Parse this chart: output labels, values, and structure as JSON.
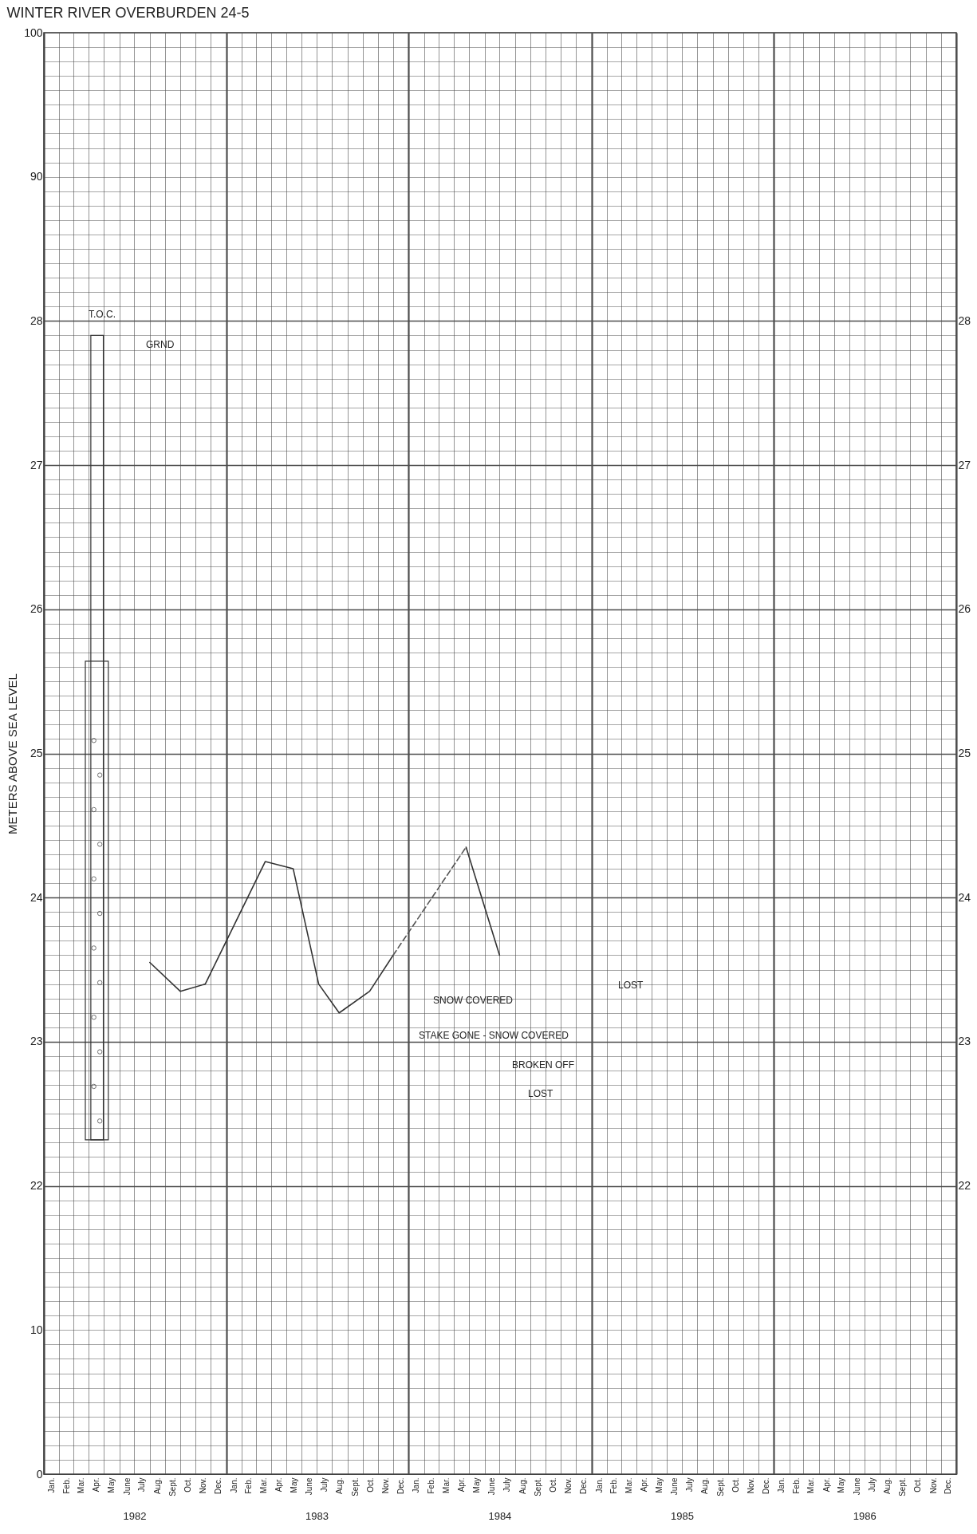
{
  "chart_data": {
    "type": "line",
    "title": "WINTER RIVER OVERBURDEN 24-5",
    "ylabel": "METERS ABOVE SEA LEVEL",
    "xlim": [
      "1982-01-01",
      "1987-01-01"
    ],
    "xticks": [
      {
        "value": "1982-01-01",
        "label": null
      },
      {
        "value": "1982-01-16",
        "label": "Jan."
      },
      {
        "value": "1982-02-01",
        "label": null
      },
      {
        "value": "1982-02-15",
        "label": "Feb."
      },
      {
        "value": "1982-03-01",
        "label": null
      },
      {
        "value": "1982-03-16",
        "label": "Mar."
      },
      {
        "value": "1982-04-01",
        "label": null
      },
      {
        "value": "1982-04-16",
        "label": "Apr."
      },
      {
        "value": "1982-05-01",
        "label": null
      },
      {
        "value": "1982-05-16",
        "label": "May"
      },
      {
        "value": "1982-06-01",
        "label": null
      },
      {
        "value": "1982-06-16",
        "label": "June"
      },
      {
        "value": "1982-07-01",
        "label": null
      },
      {
        "value": "1982-07-16",
        "label": "July"
      },
      {
        "value": "1982-08-01",
        "label": null
      },
      {
        "value": "1982-08-16",
        "label": "Aug."
      },
      {
        "value": "1982-09-01",
        "label": null
      },
      {
        "value": "1982-09-16",
        "label": "Sept."
      },
      {
        "value": "1982-10-01",
        "label": null
      },
      {
        "value": "1982-10-16",
        "label": "Oct."
      },
      {
        "value": "1982-11-01",
        "label": null
      },
      {
        "value": "1982-11-16",
        "label": "Nov."
      },
      {
        "value": "1982-12-01",
        "label": null
      },
      {
        "value": "1982-12-16",
        "label": "Dec."
      },
      {
        "value": "1983-01-01",
        "label": null
      },
      {
        "value": "1983-01-16",
        "label": "Jan."
      },
      {
        "value": "1983-02-01",
        "label": null
      },
      {
        "value": "1983-02-15",
        "label": "Feb."
      },
      {
        "value": "1983-03-01",
        "label": null
      },
      {
        "value": "1983-03-16",
        "label": "Mar."
      },
      {
        "value": "1983-04-01",
        "label": null
      },
      {
        "value": "1983-04-16",
        "label": "Apr."
      },
      {
        "value": "1983-05-01",
        "label": null
      },
      {
        "value": "1983-05-16",
        "label": "May"
      },
      {
        "value": "1983-06-01",
        "label": null
      },
      {
        "value": "1983-06-16",
        "label": "June"
      },
      {
        "value": "1983-07-01",
        "label": null
      },
      {
        "value": "1983-07-16",
        "label": "July"
      },
      {
        "value": "1983-08-01",
        "label": null
      },
      {
        "value": "1983-08-16",
        "label": "Aug."
      },
      {
        "value": "1983-09-01",
        "label": null
      },
      {
        "value": "1983-09-16",
        "label": "Sept."
      },
      {
        "value": "1983-10-01",
        "label": null
      },
      {
        "value": "1983-10-16",
        "label": "Oct."
      },
      {
        "value": "1983-11-01",
        "label": null
      },
      {
        "value": "1983-11-16",
        "label": "Nov."
      },
      {
        "value": "1983-12-01",
        "label": null
      },
      {
        "value": "1983-12-16",
        "label": "Dec."
      },
      {
        "value": "1984-01-01",
        "label": null
      },
      {
        "value": "1984-01-16",
        "label": "Jan."
      },
      {
        "value": "1984-02-01",
        "label": null
      },
      {
        "value": "1984-02-15",
        "label": "Feb."
      },
      {
        "value": "1984-03-01",
        "label": null
      },
      {
        "value": "1984-03-16",
        "label": "Mar."
      },
      {
        "value": "1984-04-01",
        "label": null
      },
      {
        "value": "1984-04-16",
        "label": "Apr."
      },
      {
        "value": "1984-05-01",
        "label": null
      },
      {
        "value": "1984-05-16",
        "label": "May"
      },
      {
        "value": "1984-06-01",
        "label": null
      },
      {
        "value": "1984-06-16",
        "label": "June"
      },
      {
        "value": "1984-07-01",
        "label": null
      },
      {
        "value": "1984-07-16",
        "label": "July"
      },
      {
        "value": "1984-08-01",
        "label": null
      },
      {
        "value": "1984-08-16",
        "label": "Aug."
      },
      {
        "value": "1984-09-01",
        "label": null
      },
      {
        "value": "1984-09-16",
        "label": "Sept."
      },
      {
        "value": "1984-10-01",
        "label": null
      },
      {
        "value": "1984-10-16",
        "label": "Oct."
      },
      {
        "value": "1984-11-01",
        "label": null
      },
      {
        "value": "1984-11-16",
        "label": "Nov."
      },
      {
        "value": "1984-12-01",
        "label": null
      },
      {
        "value": "1984-12-16",
        "label": "Dec."
      },
      {
        "value": "1985-01-01",
        "label": null
      },
      {
        "value": "1985-01-16",
        "label": "Jan."
      },
      {
        "value": "1985-02-01",
        "label": null
      },
      {
        "value": "1985-02-15",
        "label": "Feb."
      },
      {
        "value": "1985-03-01",
        "label": null
      },
      {
        "value": "1985-03-16",
        "label": "Mar."
      },
      {
        "value": "1985-04-01",
        "label": null
      },
      {
        "value": "1985-04-16",
        "label": "Apr."
      },
      {
        "value": "1985-05-01",
        "label": null
      },
      {
        "value": "1985-05-16",
        "label": "May"
      },
      {
        "value": "1985-06-01",
        "label": null
      },
      {
        "value": "1985-06-16",
        "label": "June"
      },
      {
        "value": "1985-07-01",
        "label": null
      },
      {
        "value": "1985-07-16",
        "label": "July"
      },
      {
        "value": "1985-08-01",
        "label": null
      },
      {
        "value": "1985-08-16",
        "label": "Aug."
      },
      {
        "value": "1985-09-01",
        "label": null
      },
      {
        "value": "1985-09-16",
        "label": "Sept."
      },
      {
        "value": "1985-10-01",
        "label": null
      },
      {
        "value": "1985-10-16",
        "label": "Oct."
      },
      {
        "value": "1985-11-01",
        "label": null
      },
      {
        "value": "1985-11-16",
        "label": "Nov."
      },
      {
        "value": "1985-12-01",
        "label": null
      },
      {
        "value": "1985-12-16",
        "label": "Dec."
      },
      {
        "value": "1986-01-01",
        "label": null
      },
      {
        "value": "1986-01-16",
        "label": "Jan."
      },
      {
        "value": "1986-02-01",
        "label": null
      },
      {
        "value": "1986-02-15",
        "label": "Feb."
      },
      {
        "value": "1986-03-01",
        "label": null
      },
      {
        "value": "1986-03-16",
        "label": "Mar."
      },
      {
        "value": "1986-04-01",
        "label": null
      },
      {
        "value": "1986-04-16",
        "label": "Apr."
      },
      {
        "value": "1986-05-01",
        "label": null
      },
      {
        "value": "1986-05-16",
        "label": "May"
      },
      {
        "value": "1986-06-01",
        "label": null
      },
      {
        "value": "1986-06-16",
        "label": "June"
      },
      {
        "value": "1986-07-01",
        "label": null
      },
      {
        "value": "1986-07-16",
        "label": "July"
      },
      {
        "value": "1986-08-01",
        "label": null
      },
      {
        "value": "1986-08-16",
        "label": "Aug."
      },
      {
        "value": "1986-09-01",
        "label": null
      },
      {
        "value": "1986-09-16",
        "label": "Sept."
      },
      {
        "value": "1986-10-01",
        "label": null
      },
      {
        "value": "1986-10-16",
        "label": "Oct."
      },
      {
        "value": "1986-11-01",
        "label": null
      },
      {
        "value": "1986-11-16",
        "label": "Nov."
      },
      {
        "value": "1986-12-01",
        "label": null
      },
      {
        "value": "1986-12-16",
        "label": "Dec."
      },
      {
        "value": "1987-01-01",
        "label": null
      }
    ],
    "x2lim": [
      "1982-01-01",
      "1987-01-01"
    ],
    "x2ticks": [
      {
        "value": "1982-07-01",
        "label": "1982"
      },
      {
        "value": "1983-07-01",
        "label": "1983"
      },
      {
        "value": "1984-07-01",
        "label": "1984"
      },
      {
        "value": "1985-07-01",
        "label": "1985"
      },
      {
        "value": "1986-07-01",
        "label": "1986"
      }
    ],
    "ylim": [
      20,
      30
    ],
    "yticks": [
      22,
      23,
      24,
      25,
      26,
      27,
      28
    ],
    "y2lim": [
      20,
      30
    ],
    "y2ticks": [
      22,
      23,
      24,
      25,
      26,
      27,
      28
    ],
    "y3lim": [
      0,
      100
    ],
    "y3ticks": [
      0,
      10,
      90,
      100
    ],
    "grid": true,
    "series": [
      {
        "color": "#333333",
        "line_style": "solid",
        "x": [
          "1982-08-01",
          "1982-10-01",
          "1982-11-20",
          "1983-03-20",
          "1983-05-15",
          "1983-07-05",
          "1983-08-15",
          "1983-10-15",
          "1983-12-01",
          "1984-02-01",
          "1984-04-25",
          "1984-07-01"
        ],
        "values": [
          23.55,
          23.35,
          23.4,
          24.25,
          24.2,
          23.4,
          23.2,
          23.35,
          23.6,
          null,
          24.35,
          23.6
        ]
      },
      {
        "color": "#555555",
        "line_style": "dashed",
        "x": [
          "1983-12-01",
          "1984-04-25"
        ],
        "values": [
          23.6,
          24.35
        ]
      }
    ],
    "annotations": [
      "T.O.C.",
      "GRND",
      "STAKE GONE - SNOW COVERED",
      "SNOW COVERED",
      "BROKEN OFF",
      "LOST",
      "LOST"
    ]
  }
}
